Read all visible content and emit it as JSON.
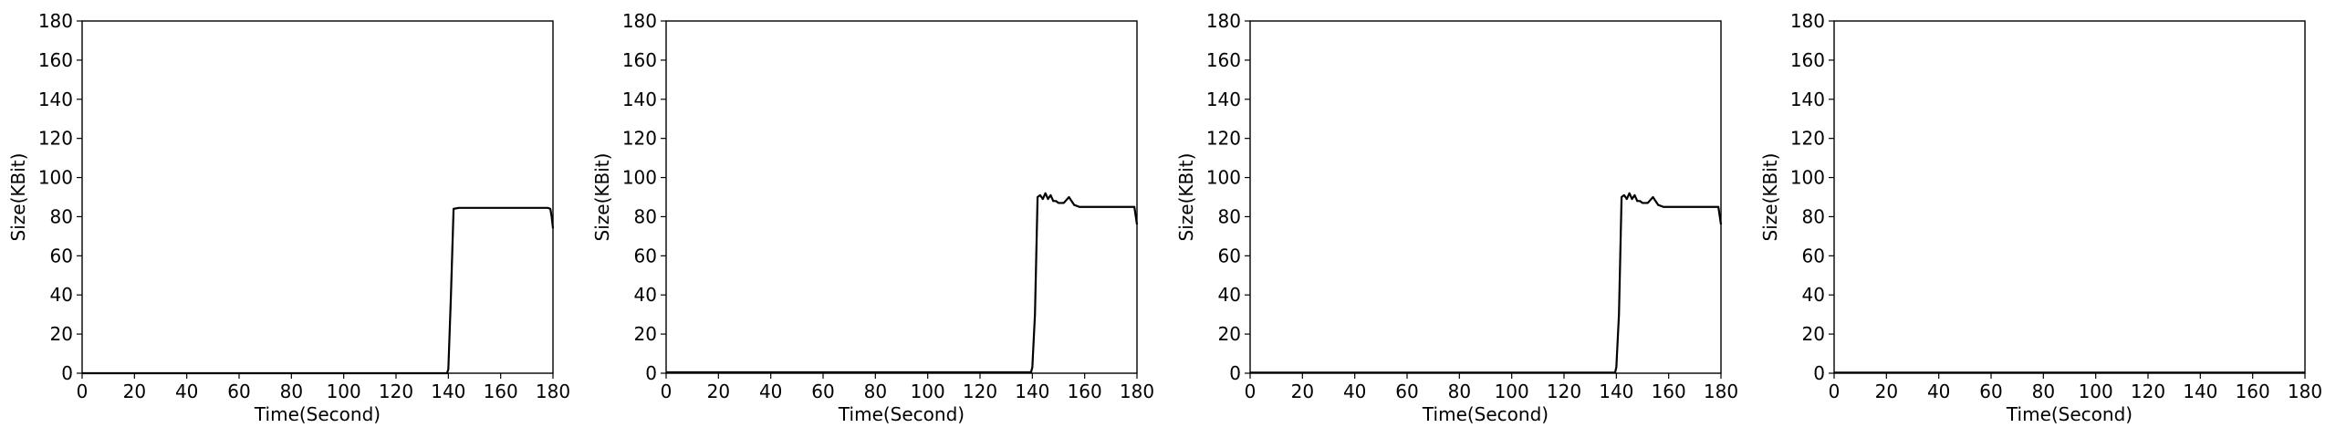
{
  "chart_data": [
    {
      "type": "line",
      "title": "",
      "xlabel": "Time(Second)",
      "ylabel": "Size(KBit)",
      "xlim": [
        0,
        180
      ],
      "ylim": [
        0,
        180
      ],
      "xticks": [
        "0",
        "20",
        "40",
        "60",
        "80",
        "100",
        "120",
        "140",
        "160",
        "180"
      ],
      "yticks": [
        "0",
        "20",
        "40",
        "60",
        "80",
        "100",
        "120",
        "140",
        "160",
        "180"
      ],
      "grid": false,
      "series": [
        {
          "color": "#000000",
          "x": [
            0,
            20,
            40,
            60,
            80,
            100,
            120,
            139.5,
            140,
            141,
            142,
            144,
            148,
            152,
            156,
            160,
            164,
            168,
            172,
            176,
            178,
            179,
            179.5,
            180
          ],
          "y": [
            0,
            0,
            0,
            0,
            0,
            0,
            0,
            0,
            2,
            40,
            84,
            84.5,
            84.5,
            84.5,
            84.5,
            84.5,
            84.5,
            84.5,
            84.5,
            84.5,
            84.5,
            84,
            80,
            74
          ]
        }
      ]
    },
    {
      "type": "line",
      "title": "",
      "xlabel": "Time(Second)",
      "ylabel": "Size(KBit)",
      "xlim": [
        0,
        180
      ],
      "ylim": [
        0,
        180
      ],
      "xticks": [
        "0",
        "20",
        "40",
        "60",
        "80",
        "100",
        "120",
        "140",
        "160",
        "180"
      ],
      "yticks": [
        "0",
        "20",
        "40",
        "60",
        "80",
        "100",
        "120",
        "140",
        "160",
        "180"
      ],
      "grid": false,
      "series": [
        {
          "color": "#000000",
          "x": [
            0,
            20,
            40,
            60,
            80,
            100,
            120,
            139.5,
            140,
            141,
            142,
            143,
            144,
            145,
            146,
            147,
            148,
            149,
            150,
            152,
            154,
            156,
            158,
            160,
            164,
            168,
            172,
            176,
            179,
            180
          ],
          "y": [
            0.5,
            0.5,
            0.5,
            0.5,
            0.5,
            0.5,
            0.5,
            0.5,
            3,
            30,
            90,
            91,
            89,
            92,
            89,
            91,
            88,
            88,
            87,
            87,
            90,
            86,
            85,
            85,
            85,
            85,
            85,
            85,
            85,
            76
          ]
        }
      ]
    },
    {
      "type": "line",
      "title": "",
      "xlabel": "Time(Second)",
      "ylabel": "Size(KBit)",
      "xlim": [
        0,
        180
      ],
      "ylim": [
        0,
        180
      ],
      "xticks": [
        "0",
        "20",
        "40",
        "60",
        "80",
        "100",
        "120",
        "140",
        "160",
        "180"
      ],
      "yticks": [
        "0",
        "20",
        "40",
        "60",
        "80",
        "100",
        "120",
        "140",
        "160",
        "180"
      ],
      "grid": false,
      "series": [
        {
          "color": "#000000",
          "x": [
            0,
            20,
            40,
            60,
            80,
            100,
            120,
            139.5,
            140,
            141,
            142,
            143,
            144,
            145,
            146,
            147,
            148,
            149,
            150,
            152,
            154,
            156,
            158,
            160,
            164,
            168,
            172,
            176,
            179,
            180
          ],
          "y": [
            0.3,
            0.3,
            0.3,
            0.3,
            0.3,
            0.3,
            0.3,
            0.3,
            3,
            30,
            90,
            91,
            89,
            92,
            89,
            91,
            88,
            88,
            87,
            87,
            90,
            86,
            85,
            85,
            85,
            85,
            85,
            85,
            85,
            76
          ]
        }
      ]
    },
    {
      "type": "line",
      "title": "",
      "xlabel": "Time(Second)",
      "ylabel": "Size(KBit)",
      "xlim": [
        0,
        180
      ],
      "ylim": [
        0,
        180
      ],
      "xticks": [
        "0",
        "20",
        "40",
        "60",
        "80",
        "100",
        "120",
        "140",
        "160",
        "180"
      ],
      "yticks": [
        "0",
        "20",
        "40",
        "60",
        "80",
        "100",
        "120",
        "140",
        "160",
        "180"
      ],
      "grid": false,
      "series": [
        {
          "color": "#000000",
          "x": [
            0,
            20,
            40,
            60,
            80,
            100,
            120,
            140,
            160,
            180
          ],
          "y": [
            0.3,
            0.3,
            0.3,
            0.3,
            0.3,
            0.3,
            0.3,
            0.3,
            0.3,
            0.3
          ]
        }
      ]
    }
  ]
}
